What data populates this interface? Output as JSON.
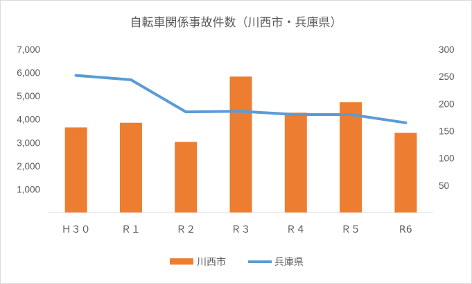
{
  "chart_data": {
    "type": "bar",
    "title": "自転車関係事故件数（川西市・兵庫県）",
    "categories": [
      "Ｈ３０",
      "Ｒ１",
      "Ｒ２",
      "Ｒ３",
      "Ｒ４",
      "Ｒ５",
      "R6"
    ],
    "series": [
      {
        "name": "川西市",
        "type": "bar",
        "axis": "left",
        "color": "#ED7D31",
        "values": [
          3650,
          3850,
          3030,
          5830,
          4280,
          4730,
          3420
        ]
      },
      {
        "name": "兵庫県",
        "type": "line",
        "axis": "right",
        "color": "#5B9BD5",
        "values": [
          252,
          244,
          185,
          186,
          180,
          180,
          165
        ]
      }
    ],
    "y_left": {
      "min": 0,
      "max": 7000,
      "step": 1000,
      "tick_labels": [
        "1,000",
        "2,000",
        "3,000",
        "4,000",
        "5,000",
        "6,000",
        "7,000"
      ]
    },
    "y_right": {
      "min": 0,
      "max": 300,
      "step": 50,
      "tick_labels": [
        "50",
        "100",
        "150",
        "200",
        "250",
        "300"
      ]
    },
    "grid": false,
    "legend_position": "bottom"
  }
}
